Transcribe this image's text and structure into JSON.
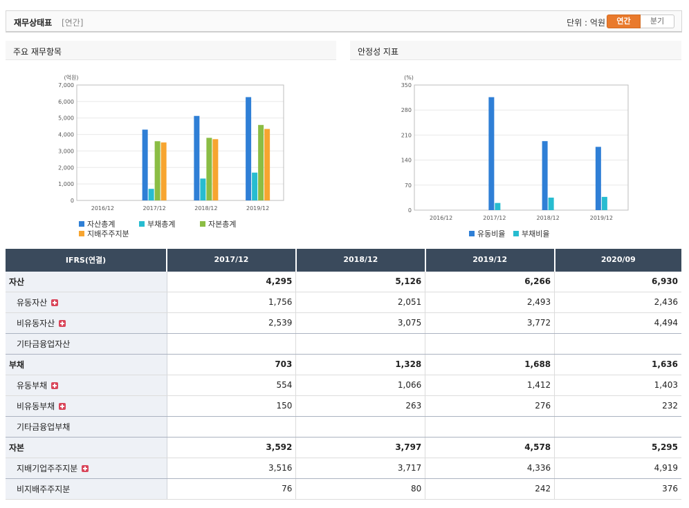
{
  "header": {
    "title": "재무상태표",
    "sub": "[연간]",
    "unit": "단위 : 억원",
    "toggles": [
      "연간",
      "분기"
    ],
    "active_toggle": 0
  },
  "panels": {
    "left_title": "주요 재무항목",
    "right_title": "안정성 지표"
  },
  "chart_data": [
    {
      "type": "bar",
      "title": "주요 재무항목",
      "ylabel": "(억원)",
      "categories": [
        "2016/12",
        "2017/12",
        "2018/12",
        "2019/12"
      ],
      "ylim": [
        0,
        7000
      ],
      "yticks": [
        "0",
        "1,000",
        "2,000",
        "3,000",
        "4,000",
        "5,000",
        "6,000",
        "7,000"
      ],
      "ytick_values": [
        0,
        1000,
        2000,
        3000,
        4000,
        5000,
        6000,
        7000
      ],
      "grid": true,
      "legend_position": "bottom",
      "series": [
        {
          "name": "자산총계",
          "color": "#2f7fd6",
          "values": [
            0,
            4295,
            5126,
            6266
          ]
        },
        {
          "name": "부채총계",
          "color": "#27bcd0",
          "values": [
            0,
            703,
            1328,
            1688
          ]
        },
        {
          "name": "자본총계",
          "color": "#8bbd44",
          "values": [
            0,
            3592,
            3797,
            4578
          ]
        },
        {
          "name": "지배주주지분",
          "color": "#f7a530",
          "values": [
            0,
            3516,
            3717,
            4336
          ]
        }
      ]
    },
    {
      "type": "bar",
      "title": "안정성 지표",
      "ylabel": "(%)",
      "categories": [
        "2016/12",
        "2017/12",
        "2018/12",
        "2019/12"
      ],
      "ylim": [
        0,
        350
      ],
      "yticks": [
        "0",
        "70",
        "140",
        "210",
        "280",
        "350"
      ],
      "ytick_values": [
        0,
        70,
        140,
        210,
        280,
        350
      ],
      "grid": true,
      "legend_position": "bottom",
      "series": [
        {
          "name": "유동비율",
          "color": "#2f7fd6",
          "values": [
            0,
            316,
            193,
            177
          ]
        },
        {
          "name": "부채비율",
          "color": "#27bcd0",
          "values": [
            0,
            20,
            35,
            37
          ]
        }
      ]
    }
  ],
  "table": {
    "header_label": "IFRS(연결)",
    "columns": [
      "2017/12",
      "2018/12",
      "2019/12",
      "2020/09"
    ],
    "rows": [
      {
        "label": "자산",
        "level": "top",
        "plus": false,
        "values": [
          "4,295",
          "5,126",
          "6,266",
          "6,930"
        ]
      },
      {
        "label": "유동자산",
        "level": "sub",
        "plus": true,
        "values": [
          "1,756",
          "2,051",
          "2,493",
          "2,436"
        ]
      },
      {
        "label": "비유동자산",
        "level": "sub",
        "plus": true,
        "values": [
          "2,539",
          "3,075",
          "3,772",
          "4,494"
        ]
      },
      {
        "label": "기타금융업자산",
        "level": "sub",
        "plus": false,
        "values": [
          "",
          "",
          "",
          ""
        ]
      },
      {
        "label": "부채",
        "level": "top",
        "plus": false,
        "values": [
          "703",
          "1,328",
          "1,688",
          "1,636"
        ]
      },
      {
        "label": "유동부채",
        "level": "sub",
        "plus": true,
        "values": [
          "554",
          "1,066",
          "1,412",
          "1,403"
        ]
      },
      {
        "label": "비유동부채",
        "level": "sub",
        "plus": true,
        "values": [
          "150",
          "263",
          "276",
          "232"
        ]
      },
      {
        "label": "기타금융업부채",
        "level": "sub",
        "plus": false,
        "values": [
          "",
          "",
          "",
          ""
        ]
      },
      {
        "label": "자본",
        "level": "top",
        "plus": false,
        "values": [
          "3,592",
          "3,797",
          "4,578",
          "5,295"
        ]
      },
      {
        "label": "지배기업주주지분",
        "level": "sub",
        "plus": true,
        "values": [
          "3,516",
          "3,717",
          "4,336",
          "4,919"
        ]
      },
      {
        "label": "비지배주주지분",
        "level": "sub",
        "plus": false,
        "values": [
          "76",
          "80",
          "242",
          "376"
        ]
      }
    ]
  }
}
